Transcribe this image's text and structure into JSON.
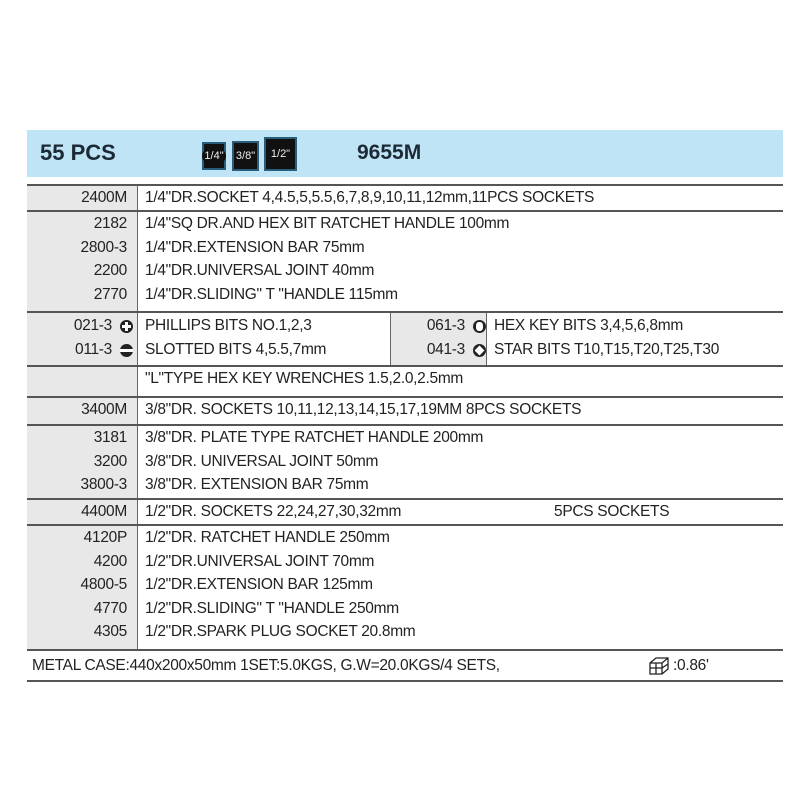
{
  "header": {
    "pcs": "55 PCS",
    "drives": [
      "1/4\"",
      "3/8\"",
      "1/2\""
    ],
    "model": "9655M",
    "color": "#bfe4f6"
  },
  "rows": [
    {
      "codes": [
        "2400M"
      ],
      "descs": [
        "1/4\"DR.SOCKET 4,4.5,5,5.5,6,7,8,9,10,11,12mm,11PCS SOCKETS"
      ]
    },
    {
      "codes": [
        "2182",
        "2800-3",
        "2200",
        "2770"
      ],
      "descs": [
        "1/4\"SQ DR.AND HEX BIT RATCHET HANDLE 100mm",
        "1/4\"DR.EXTENSION BAR 75mm",
        "1/4\"DR.UNIVERSAL JOINT 40mm",
        "1/4\"DR.SLIDING\" T \"HANDLE 115mm"
      ]
    },
    {
      "bits": [
        {
          "code": "021-3",
          "icon": "phillips-icon",
          "desc": "PHILLIPS BITS NO.1,2,3"
        },
        {
          "code": "011-3",
          "icon": "slotted-icon",
          "desc": "SLOTTED BITS 4,5.5,7mm"
        },
        {
          "code": "061-3",
          "icon": "hex-icon",
          "desc": "HEX KEY BITS 3,4,5,6,8mm"
        },
        {
          "code": "041-3",
          "icon": "star-icon",
          "desc": "STAR BITS T10,T15,T20,T25,T30"
        }
      ]
    },
    {
      "codes": [
        ""
      ],
      "descs": [
        "\"L\"TYPE HEX KEY WRENCHES 1.5,2.0,2.5mm"
      ]
    },
    {
      "codes": [
        "3400M"
      ],
      "descs": [
        "3/8\"DR. SOCKETS 10,11,12,13,14,15,17,19MM  8PCS SOCKETS"
      ]
    },
    {
      "codes": [
        "3181",
        "3200",
        "3800-3"
      ],
      "descs": [
        "3/8\"DR. PLATE TYPE RATCHET HANDLE 200mm",
        "3/8\"DR. UNIVERSAL JOINT 50mm",
        "3/8\"DR. EXTENSION BAR 75mm"
      ]
    },
    {
      "codes": [
        "4400M"
      ],
      "descs": [
        "1/2\"DR. SOCKETS 22,24,27,30,32mm"
      ],
      "extra": "5PCS SOCKETS"
    },
    {
      "codes": [
        "4120P",
        "4200",
        "4800-5",
        "4770",
        "4305"
      ],
      "descs": [
        "1/2\"DR. RATCHET HANDLE 250mm",
        "1/2\"DR.UNIVERSAL JOINT 70mm",
        "1/2\"DR.EXTENSION BAR 125mm",
        "1/2\"DR.SLIDING\" T \"HANDLE 250mm",
        "1/2\"DR.SPARK PLUG SOCKET 20.8mm"
      ]
    }
  ],
  "footer": {
    "text": "METAL CASE:440x200x50mm  1SET:5.0KGS, G.W=20.0KGS/4 SETS,",
    "volume": ":0.86'",
    "icon": "carton-box-icon"
  }
}
